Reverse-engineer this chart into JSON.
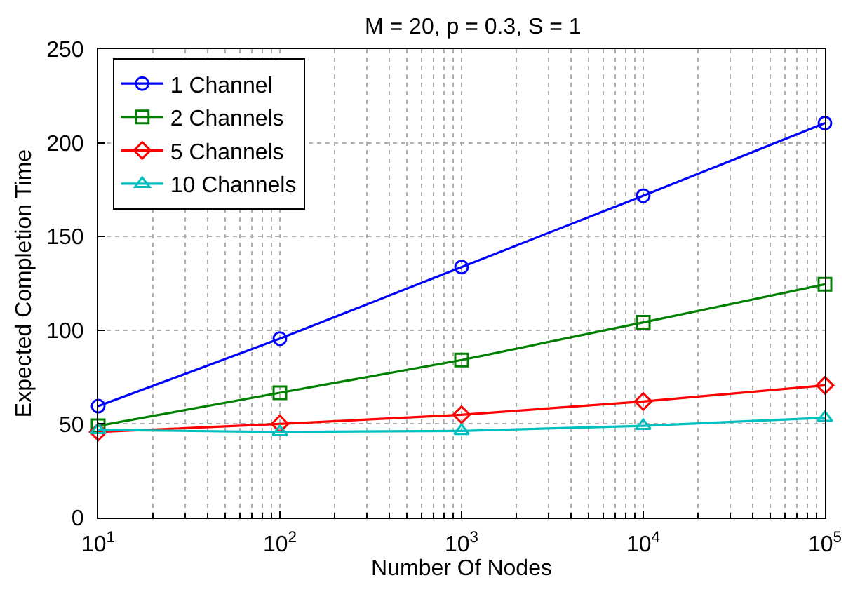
{
  "chart_data": {
    "type": "line",
    "title": "M = 20, p = 0.3, S = 1",
    "xlabel": "Number Of Nodes",
    "ylabel": "Expected Completion Time",
    "x": [
      10,
      100,
      1000,
      10000,
      100000
    ],
    "series": [
      {
        "name": "1 Channel",
        "color": "#0000ff",
        "marker": "circle",
        "values": [
          59.5,
          95.5,
          133.7,
          171.8,
          210.5
        ]
      },
      {
        "name": "2 Channels",
        "color": "#008000",
        "marker": "square",
        "values": [
          49,
          66.6,
          84.1,
          104.2,
          124.5
        ]
      },
      {
        "name": "5 Channels",
        "color": "#ff0000",
        "marker": "diamond",
        "values": [
          45.7,
          50,
          54.9,
          62,
          70.6
        ]
      },
      {
        "name": "10 Channels",
        "color": "#00bfbf",
        "marker": "triangle",
        "values": [
          46.8,
          45.7,
          46.3,
          49,
          53.3
        ]
      }
    ],
    "log": "x",
    "xlim": [
      10,
      100000
    ],
    "xticks": [
      {
        "value": 10,
        "label": "10$^{1}$"
      },
      {
        "value": 100,
        "label": "10$^{2}$"
      },
      {
        "value": 1000,
        "label": "10$^{3}$"
      },
      {
        "value": 10000,
        "label": "10$^{4}$"
      },
      {
        "value": 100000,
        "label": "10$^{5}$"
      }
    ],
    "ylim": [
      0,
      250
    ],
    "yticks": [
      0,
      50,
      100,
      150,
      200,
      250
    ],
    "grid": true,
    "legend": "top left",
    "line_style": "solid"
  }
}
